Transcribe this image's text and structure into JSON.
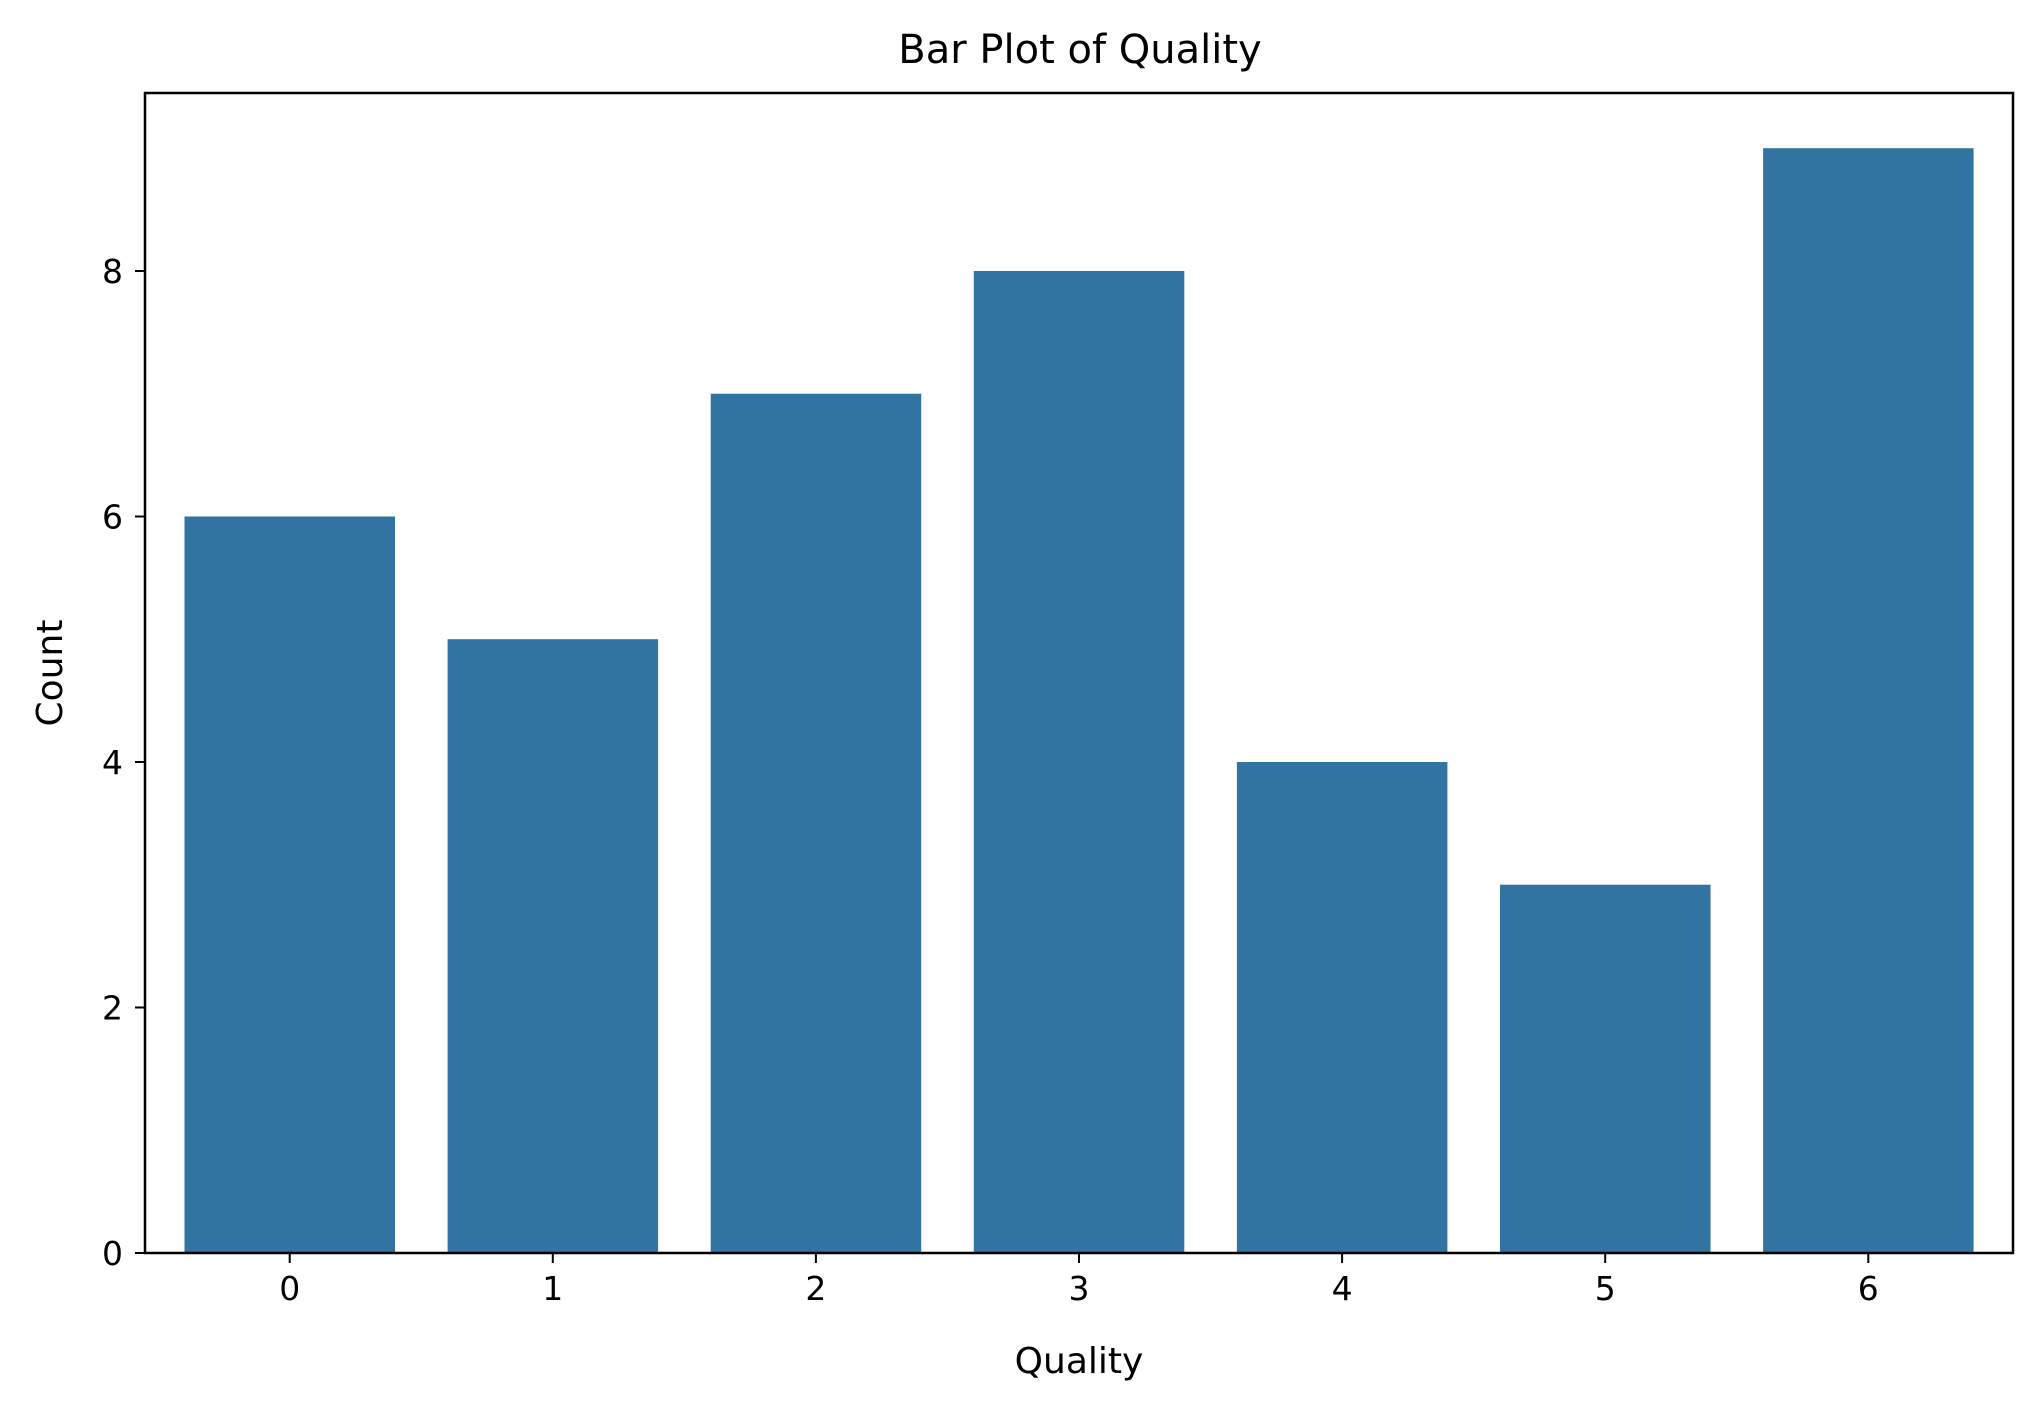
{
  "chart_data": {
    "type": "bar",
    "title": "Bar Plot of Quality",
    "xlabel": "Quality",
    "ylabel": "Count",
    "categories": [
      "0",
      "1",
      "2",
      "3",
      "4",
      "5",
      "6"
    ],
    "values": [
      6,
      5,
      7,
      8,
      4,
      3,
      9
    ],
    "ylim": [
      0,
      9.45
    ],
    "yticks": [
      0,
      2,
      4,
      6,
      8
    ],
    "grid": false,
    "bar_color": "#3274a1"
  }
}
